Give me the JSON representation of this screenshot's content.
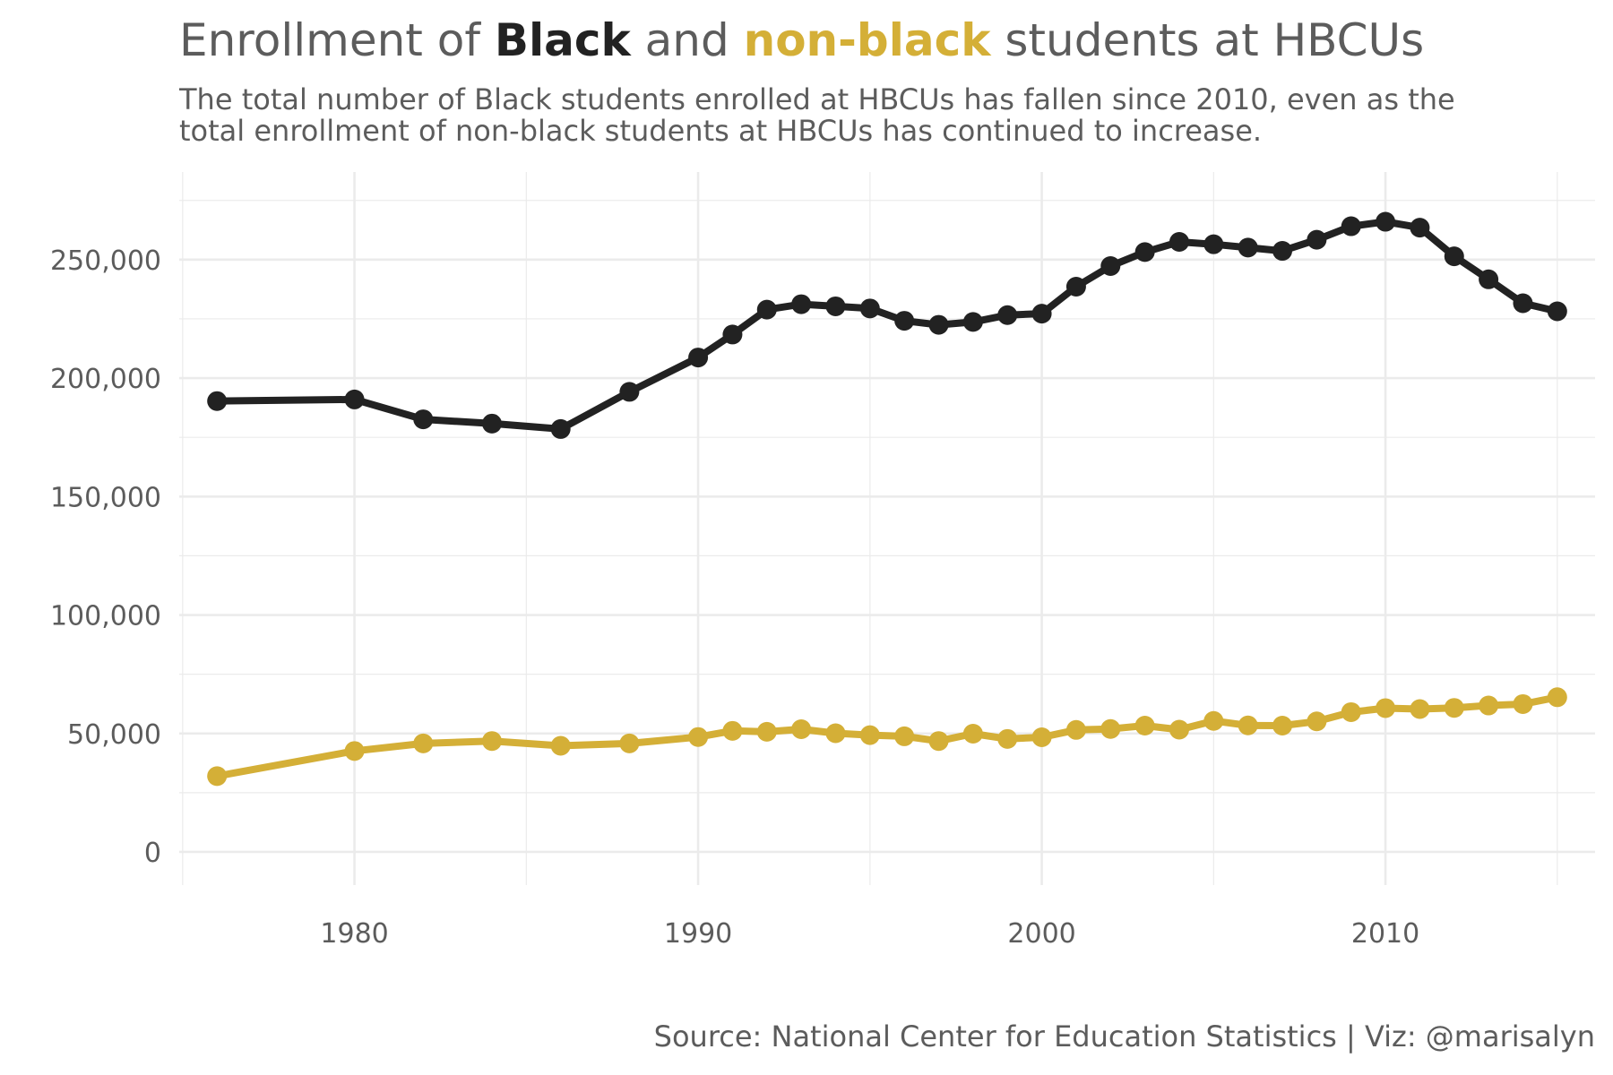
{
  "header": {
    "title_pre": "Enrollment of ",
    "title_black": "Black",
    "title_mid": " and ",
    "title_nonblack": "non-black",
    "title_post": " students at HBCUs",
    "subtitle_line1": "The total number of Black students enrolled at HBCUs has fallen since 2010, even as the",
    "subtitle_line2": "total enrollment of non-black students at HBCUs has continued to increase."
  },
  "caption": "Source: National Center for Education Statistics | Viz: @marisalyn",
  "colors": {
    "black": "#222222",
    "nonblack": "#d4af37",
    "grid": "#ebebeb",
    "text": "#5c5c5c"
  },
  "chart_data": {
    "type": "line",
    "title": "Enrollment of Black and non-black students at HBCUs",
    "xlabel": "",
    "ylabel": "",
    "xlim": [
      1974.9,
      2016.1
    ],
    "ylim": [
      -14000,
      287000
    ],
    "x_ticks": [
      1980,
      1990,
      2000,
      2010
    ],
    "y_ticks": [
      0,
      50000,
      100000,
      150000,
      200000,
      250000
    ],
    "y_tick_labels": [
      "0",
      "50,000",
      "100,000",
      "150,000",
      "200,000",
      "250,000"
    ],
    "grid": true,
    "legend": "none (series identified by colored title words)",
    "series": [
      {
        "name": "Black",
        "color": "#222222",
        "points": [
          [
            1976,
            190300
          ],
          [
            1980,
            190990
          ],
          [
            1982,
            182600
          ],
          [
            1984,
            180800
          ],
          [
            1986,
            178500
          ],
          [
            1988,
            194200
          ],
          [
            1990,
            208700
          ],
          [
            1991,
            218400
          ],
          [
            1992,
            228900
          ],
          [
            1993,
            231200
          ],
          [
            1994,
            230300
          ],
          [
            1995,
            229400
          ],
          [
            1996,
            224200
          ],
          [
            1997,
            222500
          ],
          [
            1998,
            223700
          ],
          [
            1999,
            226600
          ],
          [
            2000,
            227200
          ],
          [
            2001,
            238600
          ],
          [
            2002,
            247300
          ],
          [
            2003,
            253200
          ],
          [
            2004,
            257500
          ],
          [
            2005,
            256500
          ],
          [
            2006,
            255100
          ],
          [
            2007,
            253700
          ],
          [
            2008,
            258400
          ],
          [
            2009,
            264100
          ],
          [
            2010,
            266000
          ],
          [
            2011,
            263500
          ],
          [
            2012,
            251400
          ],
          [
            2013,
            241700
          ],
          [
            2014,
            231600
          ],
          [
            2015,
            228200
          ]
        ]
      },
      {
        "name": "non-black",
        "color": "#d4af37",
        "points": [
          [
            1976,
            32000
          ],
          [
            1980,
            42600
          ],
          [
            1982,
            45800
          ],
          [
            1984,
            46800
          ],
          [
            1986,
            44800
          ],
          [
            1988,
            45800
          ],
          [
            1990,
            48500
          ],
          [
            1991,
            51100
          ],
          [
            1992,
            50700
          ],
          [
            1993,
            51800
          ],
          [
            1994,
            50100
          ],
          [
            1995,
            49300
          ],
          [
            1996,
            48800
          ],
          [
            1997,
            46800
          ],
          [
            1998,
            49900
          ],
          [
            1999,
            47700
          ],
          [
            2000,
            48400
          ],
          [
            2001,
            51500
          ],
          [
            2002,
            51900
          ],
          [
            2003,
            53300
          ],
          [
            2004,
            51600
          ],
          [
            2005,
            55300
          ],
          [
            2006,
            53400
          ],
          [
            2007,
            53300
          ],
          [
            2008,
            55100
          ],
          [
            2009,
            59000
          ],
          [
            2010,
            60700
          ],
          [
            2011,
            60300
          ],
          [
            2012,
            60800
          ],
          [
            2013,
            61800
          ],
          [
            2014,
            62400
          ],
          [
            2015,
            65300
          ]
        ]
      }
    ]
  }
}
